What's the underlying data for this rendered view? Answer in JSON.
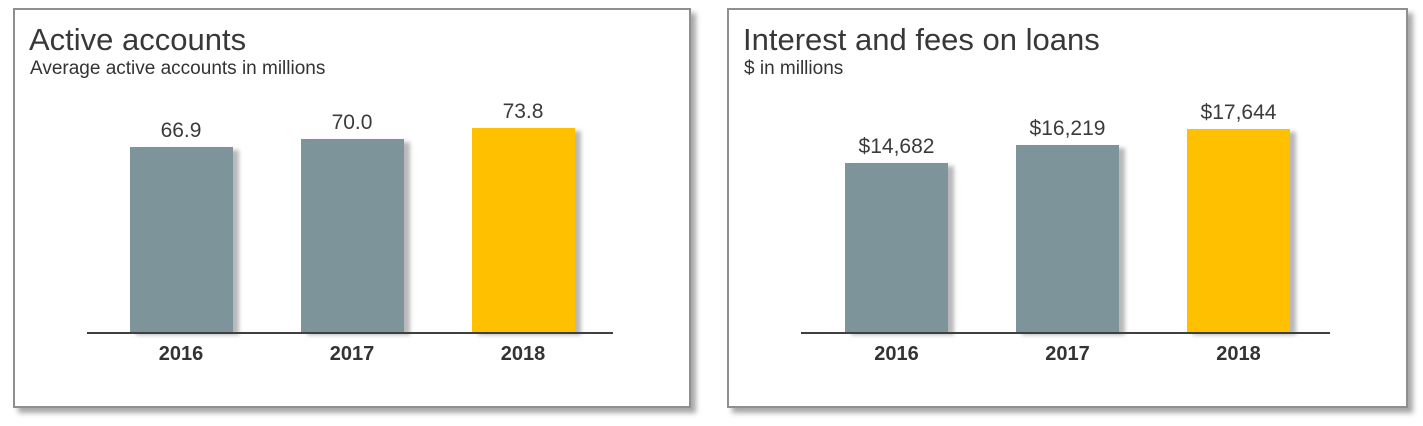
{
  "colors": {
    "bar_default": "#7E949B",
    "bar_highlight": "#FFC000",
    "axis": "#3F3F3F",
    "text": "#383838"
  },
  "chart_data": [
    {
      "type": "bar",
      "title": "Active accounts",
      "subtitle": "Average active accounts in millions",
      "categories": [
        "2016",
        "2017",
        "2018"
      ],
      "values": [
        66.9,
        70.0,
        73.8
      ],
      "data_labels": [
        "66.9",
        "70.0",
        "73.8"
      ],
      "highlight_index": 2,
      "bar_color": "#7E949B",
      "highlight_color": "#FFC000",
      "xlabel": "",
      "ylabel": "",
      "ylim": [
        0,
        75
      ],
      "grid": false,
      "legend": "none"
    },
    {
      "type": "bar",
      "title": "Interest and fees on loans",
      "subtitle": "$ in millions",
      "categories": [
        "2016",
        "2017",
        "2018"
      ],
      "values": [
        14682,
        16219,
        17644
      ],
      "data_labels": [
        "$14,682",
        "$16,219",
        "$17,644"
      ],
      "highlight_index": 2,
      "bar_color": "#7E949B",
      "highlight_color": "#FFC000",
      "xlabel": "",
      "ylabel": "",
      "ylim": [
        0,
        18000
      ],
      "grid": false,
      "legend": "none"
    }
  ]
}
